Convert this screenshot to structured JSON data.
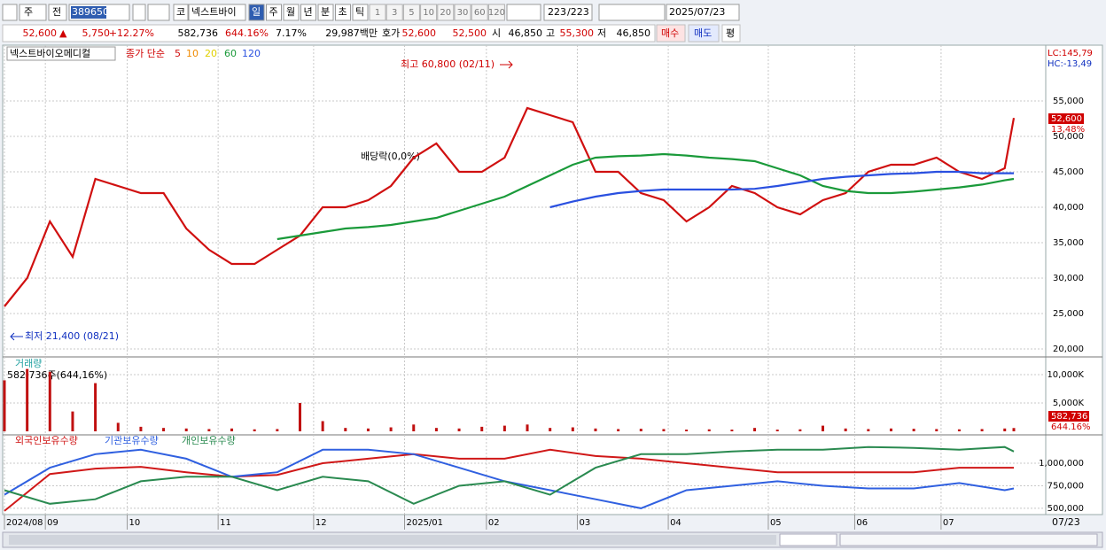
{
  "toolbar": {
    "period_type": "주",
    "prev": "전",
    "code": "389650",
    "market": "코",
    "name": "넥스트바이",
    "intervals": [
      "일",
      "주",
      "월",
      "년",
      "분",
      "초",
      "틱"
    ],
    "counts": [
      "1",
      "3",
      "5",
      "10",
      "20",
      "30",
      "60",
      "120"
    ],
    "shown": "223",
    "total": "/223",
    "date": "2025/07/23"
  },
  "quote": {
    "price": "52,600",
    "arrow": "▲",
    "change": "5,750",
    "change_pct": "+12.27%",
    "volume": "582,736",
    "volume_pct": "644.16%",
    "turnover": "7.17%",
    "amount": "29,987백만",
    "bid_label": "호가",
    "ask": "52,600",
    "bid": "52,500",
    "open_label": "시",
    "open": "46,850",
    "high_label": "고",
    "high": "55,300",
    "low_label": "저",
    "low": "46,850",
    "buy": "매수",
    "sell": "매도",
    "avg": "평"
  },
  "chart_data": [
    {
      "type": "line",
      "name": "넥스트바이오메디컬",
      "legend_title": "종가 단순",
      "ma_periods": [
        "5",
        "10",
        "20",
        "60",
        "120"
      ],
      "lc": "LC:145,79",
      "hc": "HC:-13,49",
      "last_label": "52,600",
      "last_pct": "13,48%",
      "annotations": [
        "최고 60,800 (02/11)",
        "최저 21,400 (08/21)",
        "배당락(0,0%)"
      ],
      "x": [
        0,
        5,
        10,
        15,
        20,
        25,
        30,
        35,
        40,
        45,
        50,
        55,
        60,
        65,
        70,
        75,
        80,
        85,
        90,
        95,
        100,
        105,
        110,
        115,
        120,
        125,
        130,
        135,
        140,
        145,
        150,
        155,
        160,
        165,
        170,
        175,
        180,
        185,
        190,
        195,
        200,
        205,
        210,
        215,
        220,
        222
      ],
      "xlim": [
        0,
        222
      ],
      "xticks": [
        {
          "value": 0,
          "label": "2024/08"
        },
        {
          "value": 9,
          "label": "09"
        },
        {
          "value": 27,
          "label": "10"
        },
        {
          "value": 47,
          "label": "11"
        },
        {
          "value": 68,
          "label": "12"
        },
        {
          "value": 88,
          "label": "2025/01"
        },
        {
          "value": 106,
          "label": "02"
        },
        {
          "value": 126,
          "label": "03"
        },
        {
          "value": 146,
          "label": "04"
        },
        {
          "value": 168,
          "label": "05"
        },
        {
          "value": 187,
          "label": "06"
        },
        {
          "value": 206,
          "label": "07"
        }
      ],
      "x_end_label": "07/23",
      "ylim": [
        19000,
        62875
      ],
      "yticks": [
        {
          "value": 20000,
          "label": "20,000"
        },
        {
          "value": 25000,
          "label": "25,000"
        },
        {
          "value": 30000,
          "label": "30,000"
        },
        {
          "value": 35000,
          "label": "35,000"
        },
        {
          "value": 40000,
          "label": "40,000"
        },
        {
          "value": 45000,
          "label": "45,000"
        },
        {
          "value": 50000,
          "label": "50,000"
        },
        {
          "value": 55000,
          "label": "55,000"
        }
      ],
      "series": [
        {
          "name": "5",
          "color": "#d01010",
          "values": [
            26000,
            30000,
            38000,
            33000,
            44000,
            43000,
            42000,
            42000,
            37000,
            34000,
            32000,
            32000,
            34000,
            36000,
            40000,
            40000,
            41000,
            43000,
            47000,
            49000,
            45000,
            45000,
            47000,
            54000,
            53000,
            52000,
            45000,
            45000,
            42000,
            41000,
            38000,
            40000,
            43000,
            42000,
            40000,
            39000,
            41000,
            42000,
            45000,
            46000,
            46000,
            47000,
            45000,
            44000,
            45500,
            52600
          ]
        },
        {
          "name": "60",
          "color": "#1a9a3a",
          "values": [
            null,
            null,
            null,
            null,
            null,
            null,
            null,
            null,
            null,
            null,
            null,
            null,
            35500,
            36000,
            36500,
            37000,
            37200,
            37500,
            38000,
            38500,
            39500,
            40500,
            41500,
            43000,
            44500,
            46000,
            47000,
            47200,
            47300,
            47500,
            47300,
            47000,
            46800,
            46500,
            45500,
            44500,
            43000,
            42300,
            42000,
            42000,
            42200,
            42500,
            42800,
            43200,
            43800,
            44000
          ]
        },
        {
          "name": "120",
          "color": "#2a50e0",
          "values": [
            null,
            null,
            null,
            null,
            null,
            null,
            null,
            null,
            null,
            null,
            null,
            null,
            null,
            null,
            null,
            null,
            null,
            null,
            null,
            null,
            null,
            null,
            null,
            null,
            40000,
            40800,
            41500,
            42000,
            42300,
            42500,
            42500,
            42500,
            42500,
            42600,
            43000,
            43500,
            44000,
            44300,
            44500,
            44700,
            44800,
            45000,
            45000,
            44800,
            44800,
            44800
          ]
        }
      ]
    },
    {
      "type": "bar",
      "title": "거래량",
      "subtitle": "582,736주(644,16%)",
      "last_label": "582,736",
      "last_pct": "644.16%",
      "color": "#c01010",
      "x": [
        0,
        5,
        10,
        15,
        20,
        25,
        30,
        35,
        40,
        45,
        50,
        55,
        60,
        65,
        70,
        75,
        80,
        85,
        90,
        95,
        100,
        105,
        110,
        115,
        120,
        125,
        130,
        135,
        140,
        145,
        150,
        155,
        160,
        165,
        170,
        175,
        180,
        185,
        190,
        195,
        200,
        205,
        210,
        215,
        220,
        222
      ],
      "xlim": [
        0,
        222
      ],
      "ylim": [
        0,
        12500000
      ],
      "yticks": [
        {
          "value": 5000000,
          "label": "5,000K"
        },
        {
          "value": 10000000,
          "label": "10,000K"
        }
      ],
      "values": [
        9000000,
        11000000,
        10500000,
        3500000,
        8500000,
        1500000,
        800000,
        600000,
        500000,
        400000,
        500000,
        350000,
        400000,
        5000000,
        1800000,
        600000,
        500000,
        700000,
        1200000,
        600000,
        500000,
        800000,
        1000000,
        1200000,
        600000,
        700000,
        500000,
        400000,
        450000,
        400000,
        300000,
        350000,
        300000,
        600000,
        300000,
        350000,
        1000000,
        500000,
        400000,
        500000,
        450000,
        400000,
        350000,
        400000,
        500000,
        582736
      ]
    },
    {
      "type": "line",
      "x": [
        0,
        10,
        20,
        30,
        40,
        50,
        60,
        70,
        80,
        90,
        100,
        110,
        120,
        130,
        140,
        150,
        160,
        170,
        180,
        190,
        200,
        210,
        220,
        222
      ],
      "xlim": [
        0,
        222
      ],
      "ylim": [
        440000,
        1295000
      ],
      "yticks": [
        {
          "value": 500000,
          "label": "500,000"
        },
        {
          "value": 750000,
          "label": "750,000"
        },
        {
          "value": 1000000,
          "label": "1,000,000"
        }
      ],
      "series": [
        {
          "name": "외국인보유수량",
          "color": "#d01818",
          "values": [
            470000,
            880000,
            940000,
            960000,
            900000,
            850000,
            870000,
            1000000,
            1050000,
            1100000,
            1050000,
            1050000,
            1150000,
            1080000,
            1050000,
            1000000,
            950000,
            900000,
            900000,
            900000,
            900000,
            950000,
            950000,
            950000
          ]
        },
        {
          "name": "기관보유수량",
          "color": "#3060e0",
          "values": [
            650000,
            950000,
            1100000,
            1150000,
            1050000,
            850000,
            900000,
            1150000,
            1150000,
            1100000,
            950000,
            800000,
            700000,
            600000,
            500000,
            700000,
            750000,
            800000,
            750000,
            720000,
            720000,
            780000,
            700000,
            720000
          ]
        },
        {
          "name": "개인보유수량",
          "color": "#2a8a50",
          "values": [
            700000,
            550000,
            600000,
            800000,
            850000,
            850000,
            700000,
            850000,
            800000,
            550000,
            750000,
            800000,
            650000,
            950000,
            1100000,
            1100000,
            1130000,
            1150000,
            1150000,
            1180000,
            1170000,
            1150000,
            1180000,
            1130000
          ]
        }
      ]
    }
  ]
}
